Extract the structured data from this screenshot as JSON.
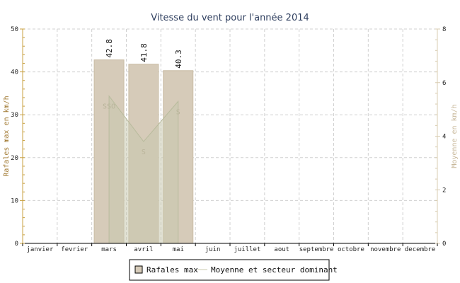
{
  "chart_data": {
    "type": "bar",
    "title": "Vitesse du vent pour l'année 2014",
    "ylabel": "Rafales max en km/h",
    "ylabel_right": "Moyenne en km/h",
    "categories": [
      "janvier",
      "fevrier",
      "mars",
      "avril",
      "mai",
      "juin",
      "juillet",
      "aout",
      "septembre",
      "octobre",
      "novembre",
      "decembre"
    ],
    "ylim": [
      0,
      50
    ],
    "ylim_right": [
      0,
      8
    ],
    "yticks": [
      "0",
      "10",
      "20",
      "30",
      "40",
      "50"
    ],
    "yticks_right": [
      "0",
      "2",
      "4",
      "6",
      "8"
    ],
    "grid": true,
    "series": [
      {
        "name": "Rafales max",
        "type": "bar",
        "axis": "left",
        "values": [
          null,
          null,
          42.8,
          41.8,
          40.3,
          null,
          null,
          null,
          null,
          null,
          null,
          null
        ],
        "labels": [
          null,
          null,
          "42.8",
          "41.8",
          "40.3",
          null,
          null,
          null,
          null,
          null,
          null,
          null
        ],
        "color": "#d6cbb9"
      },
      {
        "name": "Moyenne et secteur dominant",
        "type": "area",
        "axis": "right",
        "values": [
          null,
          null,
          5.5,
          3.8,
          5.3,
          null,
          null,
          null,
          null,
          null,
          null,
          null
        ],
        "sectors": [
          null,
          null,
          "SSO",
          "S",
          "S",
          null,
          null,
          null,
          null,
          null,
          null,
          null
        ],
        "color": "#c8c9ae"
      }
    ],
    "legend": {
      "position": "bottom",
      "entries": [
        "Rafales max",
        "Moyenne et secteur dominant"
      ]
    },
    "colors": {
      "axis_left": "#c8a040",
      "axis_right": "#d8ccb0",
      "bar": "#d6cbb9",
      "bar_border": "#c9bca4",
      "area": "#c8c9ae",
      "grid": "#d0d0d0"
    }
  }
}
